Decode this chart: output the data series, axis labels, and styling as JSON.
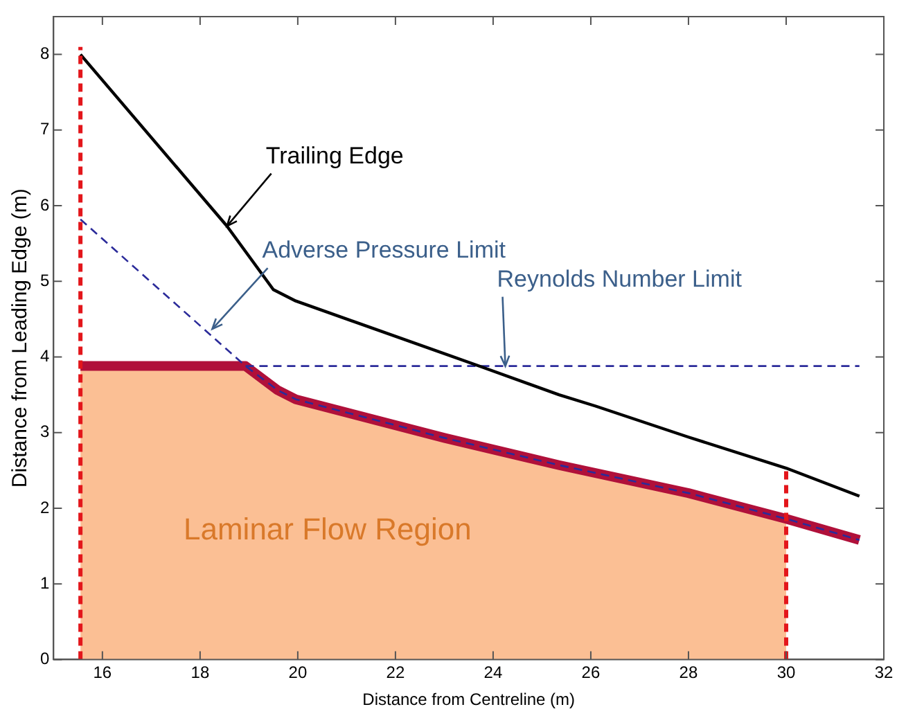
{
  "chart_data": {
    "type": "line",
    "xlabel": "Distance from Centreline (m)",
    "ylabel": "Distance from Leading Edge (m)",
    "xlim": [
      15,
      32
    ],
    "ylim": [
      0,
      8.5
    ],
    "xticks": [
      16,
      18,
      20,
      22,
      24,
      26,
      28,
      30,
      32
    ],
    "yticks": [
      0,
      1,
      2,
      3,
      4,
      5,
      6,
      7,
      8
    ],
    "grid": false,
    "legend": false,
    "marker": "none",
    "series": [
      {
        "type": "area",
        "color": "#fbbf94",
        "x": [
          15.55,
          18.7,
          18.93,
          19.59,
          19.96,
          23,
          25.35,
          28,
          30
        ],
        "values": [
          3.88,
          3.88,
          3.88,
          3.56,
          3.44,
          2.93,
          2.57,
          2.2,
          1.86
        ]
      },
      {
        "color": "#b0103a",
        "x": [
          15.55,
          18.7,
          18.93,
          19.59,
          19.96,
          23,
          25.35,
          28,
          30,
          31.5
        ],
        "values": [
          3.88,
          3.88,
          3.88,
          3.56,
          3.44,
          2.93,
          2.57,
          2.2,
          1.86,
          1.58
        ]
      },
      {
        "color": "#2b2b9a",
        "line_style": "dashed",
        "x": [
          15.55,
          18.93,
          19.59,
          19.96,
          23,
          25.35,
          28,
          30,
          31.5
        ],
        "values": [
          5.82,
          3.88,
          3.56,
          3.44,
          2.93,
          2.57,
          2.2,
          1.86,
          1.58
        ]
      },
      {
        "color": "#2b2b9a",
        "line_style": "dashed",
        "x": [
          18.93,
          31.5
        ],
        "values": [
          3.88,
          3.88
        ]
      },
      {
        "color": "#000000",
        "x": [
          15.55,
          18.55,
          19.5,
          19.96,
          23.76,
          25.35,
          26.1,
          28,
          30,
          31.5
        ],
        "values": [
          8.0,
          5.73,
          4.89,
          4.74,
          3.87,
          3.5,
          3.35,
          2.94,
          2.53,
          2.16
        ]
      },
      {
        "color": "#e3161b",
        "line_style": "dashed",
        "x": [
          15.55,
          15.55
        ],
        "values": [
          0,
          8.1
        ]
      },
      {
        "color": "#e3161b",
        "line_style": "dashed",
        "x": [
          30,
          30
        ],
        "values": [
          0,
          2.55
        ]
      }
    ],
    "annotations": [
      {
        "text": "Trailing Edge",
        "x": 18.55,
        "y": 5.73
      },
      {
        "text": "Adverse Pressure Limit",
        "x": 18.25,
        "y": 4.37
      },
      {
        "text": "Reynolds Number Limit",
        "x": 24.25,
        "y": 3.88
      },
      "Laminar Flow Region"
    ]
  }
}
